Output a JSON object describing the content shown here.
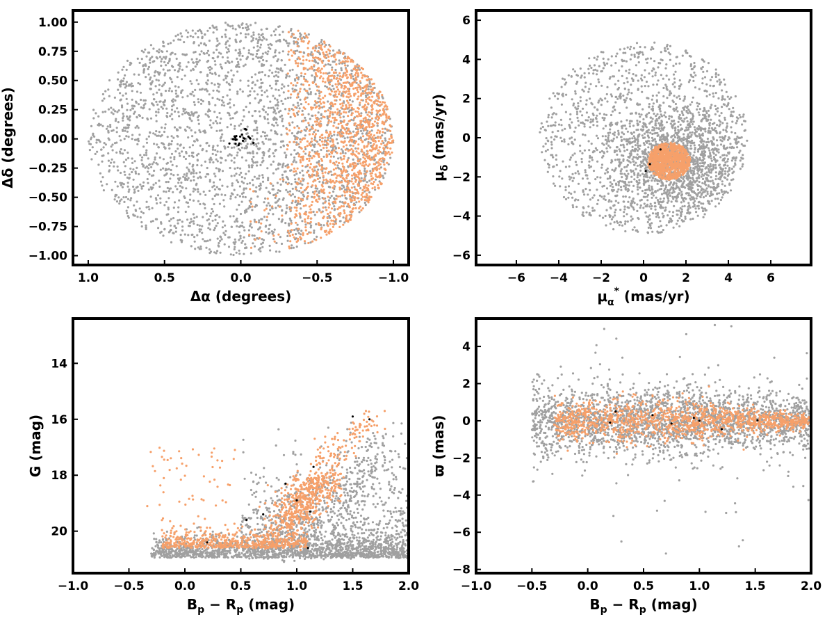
{
  "colors": {
    "field": "#a0a0a0",
    "member": "#f6a06a",
    "core": "#000000",
    "axes": "#000000"
  },
  "chart_data": [
    {
      "id": "sky",
      "type": "scatter",
      "xlabel": "Δα (degrees)",
      "ylabel": "Δδ (degrees)",
      "xlim": [
        1.1,
        -1.1
      ],
      "ylim": [
        -1.08,
        1.1
      ],
      "xticks": [
        1.0,
        0.5,
        0.0,
        -0.5,
        -1.0
      ],
      "xtick_labels": [
        "1.0",
        "0.5",
        "0.0",
        "−0.5",
        "−1.0"
      ],
      "yticks": [
        1.0,
        0.75,
        0.5,
        0.25,
        0.0,
        -0.25,
        -0.5,
        -0.75,
        -1.0
      ],
      "ytick_labels": [
        "1.00",
        "0.75",
        "0.50",
        "0.25",
        "0.00",
        "−0.25",
        "−0.50",
        "−0.75",
        "−1.00"
      ],
      "grid": false,
      "series": [
        {
          "role": "field",
          "color": "#a0a0a0",
          "n": 2600,
          "desc": "uniform disk radius 1 deg centred 0,0"
        },
        {
          "role": "member",
          "color": "#f6a06a",
          "n": 1300,
          "desc": "concentrated at Δα < -0.3, peak near -0.85, 0"
        },
        {
          "role": "core",
          "color": "#000000",
          "n": 22,
          "desc": "small clump near 0, 0"
        }
      ]
    },
    {
      "id": "proper-motion",
      "type": "scatter",
      "xlabel": "μα* (mas/yr)",
      "ylabel": "μδ (mas/yr)",
      "xlim": [
        -7.9,
        7.9
      ],
      "ylim": [
        -6.5,
        6.5
      ],
      "xticks": [
        -6,
        -4,
        -2,
        0,
        2,
        4,
        6
      ],
      "xtick_labels": [
        "−6",
        "−4",
        "−2",
        "0",
        "2",
        "4",
        "6"
      ],
      "yticks": [
        6,
        4,
        2,
        0,
        -2,
        -4,
        -6
      ],
      "ytick_labels": [
        "6",
        "4",
        "2",
        "0",
        "−2",
        "−4",
        "−6"
      ],
      "grid": false,
      "series": [
        {
          "role": "field",
          "color": "#a0a0a0",
          "n": 2600,
          "desc": "disk of radius 5 centred (0,0), dense near (1.5,-1)"
        },
        {
          "role": "member",
          "color": "#f6a06a",
          "n": 900,
          "desc": "tight clump centred (1.2,-1.2), radius ~1"
        },
        {
          "role": "core",
          "color": "#000000",
          "n": 3,
          "desc": "a few points inside the clump"
        }
      ]
    },
    {
      "id": "cmd",
      "type": "scatter",
      "xlabel": "Bp − Rp (mag)",
      "ylabel": "G (mag)",
      "xlim": [
        -1.0,
        2.0
      ],
      "ylim": [
        21.5,
        12.4
      ],
      "xticks": [
        -1.0,
        -0.5,
        0.0,
        0.5,
        1.0,
        1.5,
        2.0
      ],
      "xtick_labels": [
        "−1.0",
        "−0.5",
        "0.0",
        "0.5",
        "1.0",
        "1.5",
        "2.0"
      ],
      "yticks": [
        20,
        18,
        16,
        14
      ],
      "ytick_labels": [
        "20",
        "18",
        "16",
        "14"
      ],
      "grid": false,
      "series": [
        {
          "role": "field",
          "color": "#a0a0a0",
          "n": 2400,
          "desc": "band along G≈20.5 and spread toward red"
        },
        {
          "role": "member",
          "color": "#f6a06a",
          "n": 1200,
          "desc": "sequence from (0.2,20.5) down to (1.6,16)"
        },
        {
          "role": "core",
          "color": "#000000",
          "n": 10,
          "desc": "sparse points along the sequence"
        }
      ]
    },
    {
      "id": "parallax",
      "type": "scatter",
      "xlabel": "Bp − Rp (mag)",
      "ylabel": "ϖ (mas)",
      "xlim": [
        -1.0,
        2.0
      ],
      "ylim": [
        -8.2,
        5.5
      ],
      "xticks": [
        -1.0,
        -0.5,
        0.0,
        0.5,
        1.0,
        1.5,
        2.0
      ],
      "xtick_labels": [
        "−1.0",
        "−0.5",
        "0.0",
        "0.5",
        "1.0",
        "1.5",
        "2.0"
      ],
      "yticks": [
        4,
        2,
        0,
        -2,
        -4,
        -6,
        -8
      ],
      "ytick_labels": [
        "4",
        "2",
        "0",
        "−2",
        "−4",
        "−6",
        "−8"
      ],
      "grid": false,
      "series": [
        {
          "role": "field",
          "color": "#a0a0a0",
          "n": 2400,
          "desc": "band around ϖ=0, spread ±1.5"
        },
        {
          "role": "member",
          "color": "#f6a06a",
          "n": 1200,
          "desc": "narrow band around ϖ≈0, tapering to red"
        },
        {
          "role": "core",
          "color": "#000000",
          "n": 8,
          "desc": "a few points near ϖ≈0"
        }
      ]
    }
  ]
}
